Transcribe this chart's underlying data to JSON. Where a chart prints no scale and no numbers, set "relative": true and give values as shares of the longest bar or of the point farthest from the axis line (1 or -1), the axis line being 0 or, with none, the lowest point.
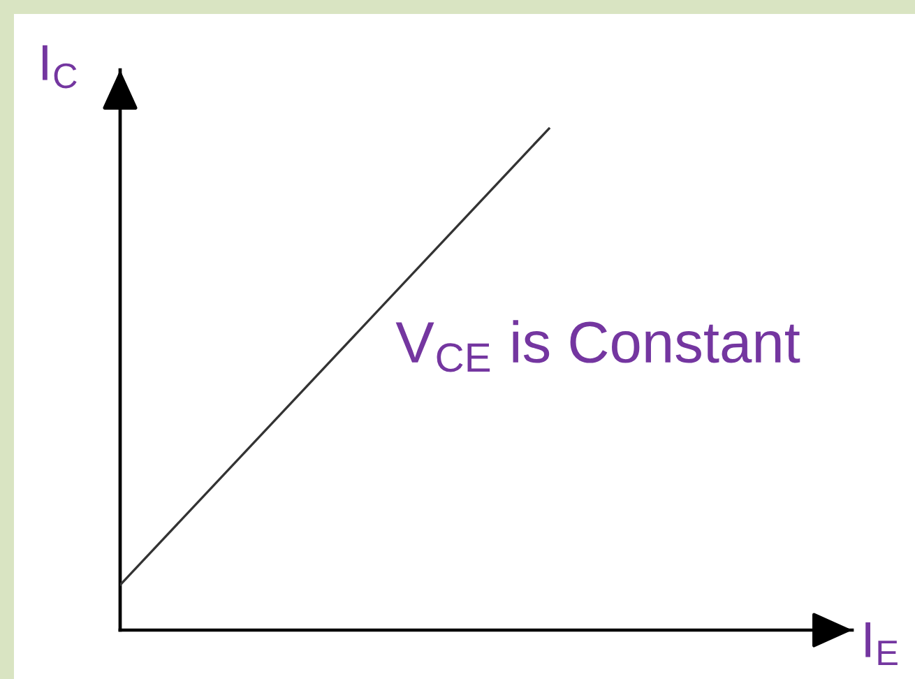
{
  "chart_data": {
    "type": "line",
    "relative": true,
    "xlabel": "I$_{E}$",
    "ylabel": "I$_{C}$",
    "categories": [
      null,
      null
    ],
    "series": [
      {
        "name": "V$_{CE}$ is Constant",
        "color": "#333333",
        "values": [
          0.09,
          1
        ]
      }
    ],
    "marker": "none",
    "line_style": "solid"
  }
}
